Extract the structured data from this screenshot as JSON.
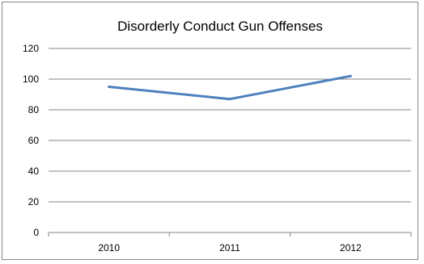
{
  "chart_data": {
    "type": "line",
    "title": "Disorderly Conduct Gun Offenses",
    "categories": [
      "2010",
      "2011",
      "2012"
    ],
    "series": [
      {
        "values": [
          95,
          87,
          102
        ],
        "color": "#4f81bd"
      }
    ],
    "ylim": [
      0,
      120
    ],
    "yticks": [
      "0",
      "20",
      "40",
      "60",
      "80",
      "100",
      "120"
    ],
    "grid": true,
    "legend": "none",
    "gridline_color": "#868686"
  }
}
